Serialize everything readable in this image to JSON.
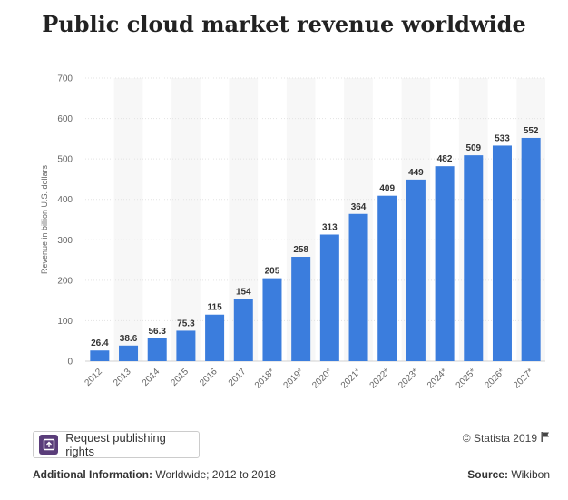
{
  "chart_data": {
    "type": "bar",
    "title": "Public cloud market revenue worldwide",
    "ylabel": "Revenue in billion U.S. dollars",
    "xlabel": "",
    "categories": [
      "2012",
      "2013",
      "2014",
      "2015",
      "2016",
      "2017",
      "2018*",
      "2019*",
      "2020*",
      "2021*",
      "2022*",
      "2023*",
      "2024*",
      "2025*",
      "2026*",
      "2027*"
    ],
    "values": [
      26.4,
      38.6,
      56.3,
      75.3,
      115,
      154,
      205,
      258,
      313,
      364,
      409,
      449,
      482,
      509,
      533,
      552
    ],
    "value_labels": [
      "26.4",
      "38.6",
      "56.3",
      "75.3",
      "115",
      "154",
      "205",
      "258",
      "313",
      "364",
      "409",
      "449",
      "482",
      "509",
      "533",
      "552"
    ],
    "yticks": [
      0,
      100,
      200,
      300,
      400,
      500,
      600,
      700
    ],
    "ylim": [
      0,
      700
    ],
    "grid": true,
    "bar_color": "#3b7ddd"
  },
  "footer": {
    "request_button": "Request publishing rights",
    "copyright": "© Statista 2019",
    "additional_info_label": "Additional Information:",
    "additional_info_value": "Worldwide; 2012 to 2018",
    "source_label": "Source:",
    "source_value": "Wikibon"
  }
}
